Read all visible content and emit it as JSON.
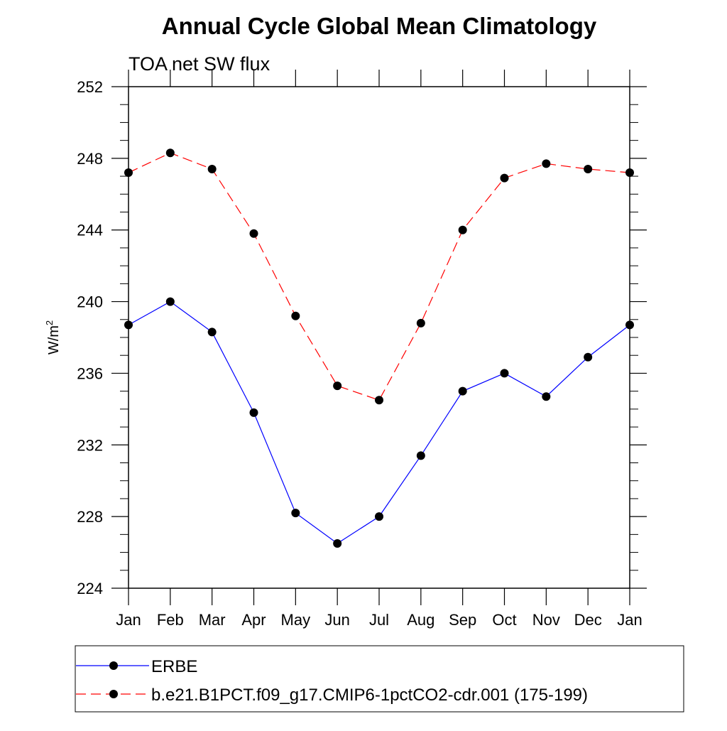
{
  "chart_data": {
    "type": "line",
    "title": "Annual Cycle Global Mean Climatology",
    "subtitle": "TOA net SW flux",
    "ylabel": "W/m",
    "ylabel_superscript": "2",
    "xlabel": "",
    "categories": [
      "Jan",
      "Feb",
      "Mar",
      "Apr",
      "May",
      "Jun",
      "Jul",
      "Aug",
      "Sep",
      "Oct",
      "Nov",
      "Dec",
      "Jan"
    ],
    "ylim": [
      224,
      252
    ],
    "yticks": [
      224,
      228,
      232,
      236,
      240,
      244,
      248,
      252
    ],
    "grid": false,
    "legend_position": "bottom",
    "series": [
      {
        "name": "ERBE",
        "color": "#0000ff",
        "dash": "solid",
        "values": [
          238.7,
          240.0,
          238.3,
          233.8,
          228.2,
          226.5,
          228.0,
          231.4,
          235.0,
          236.0,
          234.7,
          236.9,
          238.7
        ]
      },
      {
        "name": "b.e21.B1PCT.f09_g17.CMIP6-1pctCO2-cdr.001 (175-199)",
        "color": "#ff0000",
        "dash": "dashed",
        "values": [
          247.2,
          248.3,
          247.4,
          243.8,
          239.2,
          235.3,
          234.5,
          238.8,
          244.0,
          246.9,
          247.7,
          247.4,
          247.2
        ]
      }
    ]
  }
}
